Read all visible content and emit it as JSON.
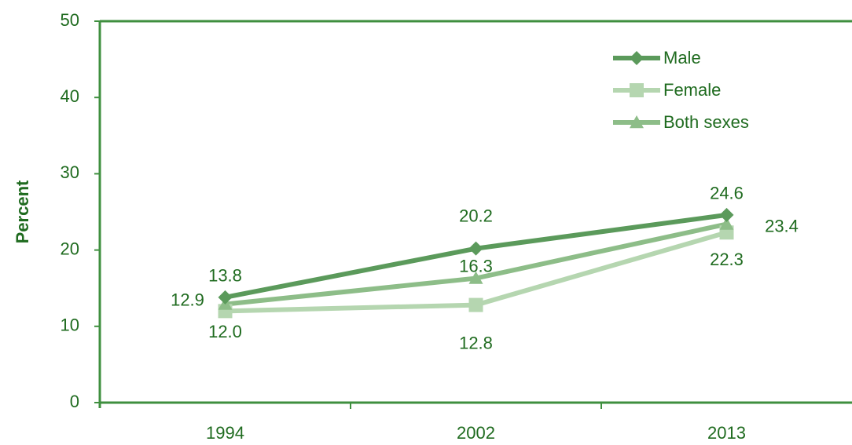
{
  "chart_data": {
    "type": "line",
    "y_label": "Percent",
    "categories": [
      "1994",
      "2002",
      "2013"
    ],
    "series": [
      {
        "name": "Male",
        "color": "#5b9a5b",
        "marker": "diamond",
        "values": [
          13.8,
          20.2,
          24.6
        ]
      },
      {
        "name": "Female",
        "color": "#b5d6b0",
        "marker": "square",
        "values": [
          12.0,
          12.8,
          22.3
        ],
        "value_labels": [
          "12.0",
          "12.8",
          "22.3"
        ]
      },
      {
        "name": "Both sexes",
        "color": "#8dbd88",
        "marker": "triangle",
        "values": [
          12.9,
          16.3,
          23.4
        ]
      }
    ],
    "ylim": [
      0,
      50
    ],
    "yticks": [
      0,
      10,
      20,
      30,
      40,
      50
    ],
    "grid": false,
    "legend": "top-right"
  }
}
